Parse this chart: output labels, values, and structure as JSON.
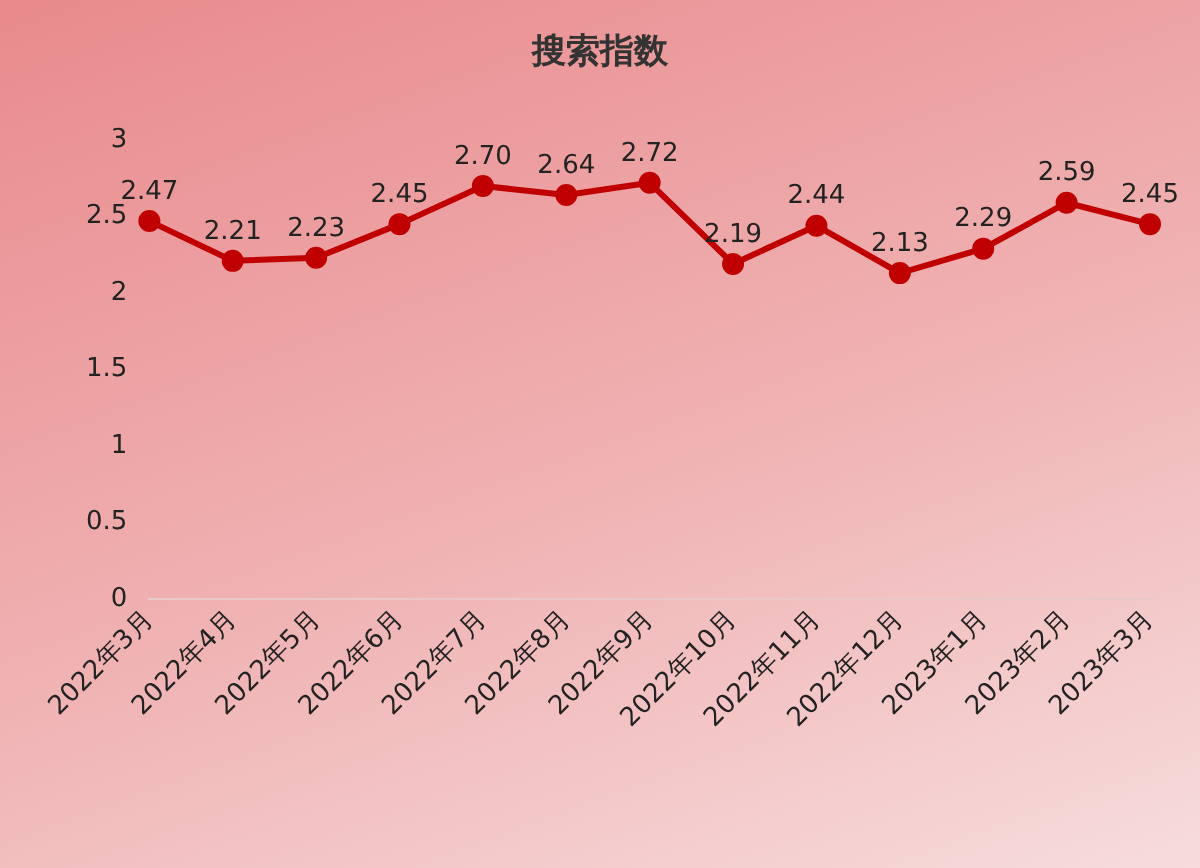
{
  "chart_data": {
    "type": "line",
    "title": "搜索指数",
    "categories": [
      "2022年3月",
      "2022年4月",
      "2022年5月",
      "2022年6月",
      "2022年7月",
      "2022年8月",
      "2022年9月",
      "2022年10月",
      "2022年11月",
      "2022年12月",
      "2023年1月",
      "2023年2月",
      "2023年3月"
    ],
    "series": [
      {
        "color": "#c00000",
        "values": [
          2.47,
          2.21,
          2.23,
          2.45,
          2.7,
          2.64,
          2.72,
          2.19,
          2.44,
          2.13,
          2.29,
          2.59,
          2.45
        ]
      }
    ],
    "value_labels": [
      "2.47",
      "2.21",
      "2.23",
      "2.45",
      "2.70",
      "2.64",
      "2.72",
      "2.19",
      "2.44",
      "2.13",
      "2.29",
      "2.59",
      "2.45"
    ],
    "ylim": [
      0,
      3
    ],
    "yticks": [
      0,
      0.5,
      1,
      1.5,
      2,
      2.5,
      3
    ],
    "grid": false,
    "legend": false,
    "marker": "circle",
    "line_style": "solid"
  }
}
